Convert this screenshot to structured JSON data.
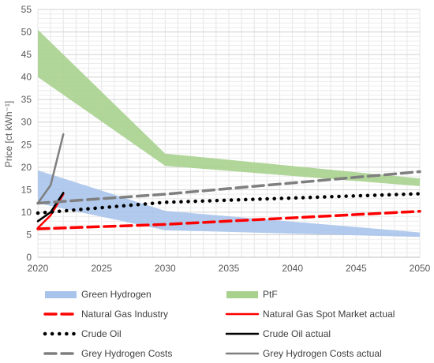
{
  "chart_data": {
    "type": "line",
    "ylabel": "Price [ct kWh⁻¹]",
    "xlabel": "",
    "xlim": [
      2020,
      2050
    ],
    "ylim": [
      0,
      55
    ],
    "x_ticks": [
      2020,
      2025,
      2030,
      2035,
      2040,
      2045,
      2050
    ],
    "y_ticks": [
      0,
      5,
      10,
      15,
      20,
      25,
      30,
      35,
      40,
      45,
      50,
      55
    ],
    "grid": true,
    "legend_position": "bottom",
    "bands": [
      {
        "name": "Green Hydrogen",
        "color": "#a9c4eb",
        "x": [
          2020,
          2030,
          2050
        ],
        "upper": [
          19.3,
          10.3,
          5.5
        ],
        "lower": [
          12.0,
          6.0,
          4.5
        ]
      },
      {
        "name": "PtF",
        "color": "#a9d18e",
        "x": [
          2020,
          2030,
          2050
        ],
        "upper": [
          50.5,
          23.0,
          17.5
        ],
        "lower": [
          40.0,
          20.3,
          15.8
        ]
      }
    ],
    "series": [
      {
        "name": "Natural Gas Industry",
        "color": "#ff0000",
        "style": "dashed",
        "x": [
          2020,
          2030,
          2050
        ],
        "values": [
          6.3,
          7.3,
          10.2
        ]
      },
      {
        "name": "Natural Gas Spot Market actual",
        "color": "#ff0000",
        "style": "solid",
        "x": [
          2020,
          2021,
          2022
        ],
        "values": [
          6.5,
          9.3,
          14.0
        ]
      },
      {
        "name": "Crude Oil",
        "color": "#000000",
        "style": "dotted",
        "x": [
          2020,
          2030,
          2050
        ],
        "values": [
          9.8,
          12.2,
          14.1
        ]
      },
      {
        "name": "Crude Oil actual",
        "color": "#000000",
        "style": "solid",
        "x": [
          2020,
          2021,
          2022
        ],
        "values": [
          8.0,
          10.0,
          14.3
        ]
      },
      {
        "name": "Grey Hydrogen Costs",
        "color": "#7f7f7f",
        "style": "dashed",
        "x": [
          2020,
          2030,
          2050
        ],
        "values": [
          12.0,
          14.0,
          19.0
        ]
      },
      {
        "name": "Grey Hydrogen Costs actual",
        "color": "#7f7f7f",
        "style": "solid",
        "x": [
          2020,
          2021,
          2022
        ],
        "values": [
          12.0,
          16.0,
          27.3
        ]
      }
    ]
  }
}
